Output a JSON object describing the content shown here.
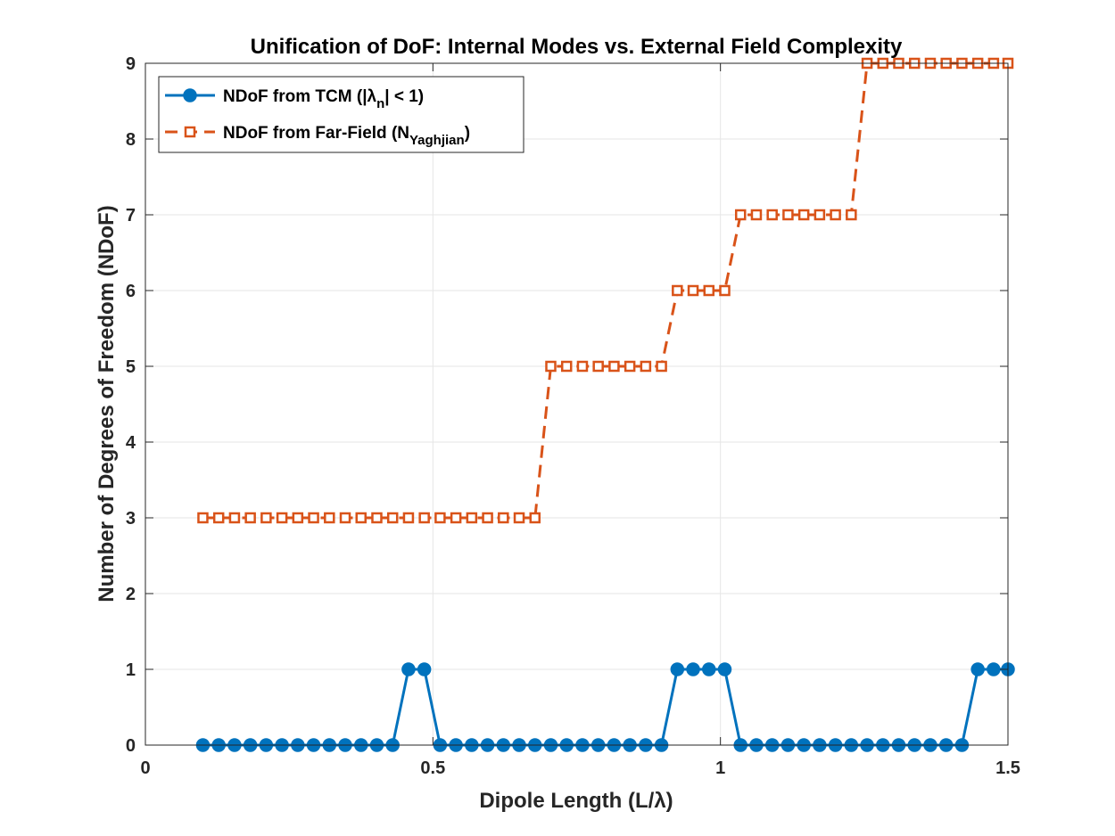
{
  "chart_data": {
    "type": "line",
    "title": "Unification of DoF: Internal Modes vs. External Field Complexity",
    "xlabel": "Dipole Length (L/λ)",
    "ylabel": "Number of Degrees of Freedom (NDoF)",
    "xlim": [
      0,
      1.5
    ],
    "ylim": [
      0,
      9
    ],
    "xticks": [
      0,
      0.5,
      1,
      1.5
    ],
    "xtick_labels": [
      "0",
      "0.5",
      "1",
      "1.5"
    ],
    "yticks": [
      0,
      1,
      2,
      3,
      4,
      5,
      6,
      7,
      8,
      9
    ],
    "ytick_labels": [
      "0",
      "1",
      "2",
      "3",
      "4",
      "5",
      "6",
      "7",
      "8",
      "9"
    ],
    "grid": true,
    "legend_position": "top-left",
    "x": [
      0.1,
      0.1275,
      0.155,
      0.1825,
      0.21,
      0.2375,
      0.265,
      0.2925,
      0.32,
      0.3475,
      0.375,
      0.4025,
      0.43,
      0.4575,
      0.485,
      0.5125,
      0.54,
      0.5675,
      0.595,
      0.6225,
      0.65,
      0.6775,
      0.705,
      0.7325,
      0.76,
      0.7875,
      0.815,
      0.8425,
      0.87,
      0.8975,
      0.925,
      0.9525,
      0.98,
      1.0075,
      1.035,
      1.0625,
      1.09,
      1.1175,
      1.145,
      1.1725,
      1.2,
      1.2275,
      1.255,
      1.2825,
      1.31,
      1.3375,
      1.365,
      1.3925,
      1.42,
      1.4475,
      1.475,
      1.5
    ],
    "series": [
      {
        "name_main": "NDoF from TCM (|λ",
        "name_sub": "n",
        "name_tail": "| < 1)",
        "color": "#0072BD",
        "line_style": "solid",
        "marker": "filled-circle",
        "values": [
          0,
          0,
          0,
          0,
          0,
          0,
          0,
          0,
          0,
          0,
          0,
          0,
          0,
          1,
          1,
          0,
          0,
          0,
          0,
          0,
          0,
          0,
          0,
          0,
          0,
          0,
          0,
          0,
          0,
          0,
          1,
          1,
          1,
          1,
          0,
          0,
          0,
          0,
          0,
          0,
          0,
          0,
          0,
          0,
          0,
          0,
          0,
          0,
          0,
          1,
          1,
          1
        ]
      },
      {
        "name_main": "NDoF from Far-Field (N",
        "name_sub": "Yaghjian",
        "name_tail": ")",
        "color": "#D95319",
        "line_style": "dashed",
        "marker": "open-square",
        "values": [
          3,
          3,
          3,
          3,
          3,
          3,
          3,
          3,
          3,
          3,
          3,
          3,
          3,
          3,
          3,
          3,
          3,
          3,
          3,
          3,
          3,
          3,
          5,
          5,
          5,
          5,
          5,
          5,
          5,
          5,
          6,
          6,
          6,
          6,
          7,
          7,
          7,
          7,
          7,
          7,
          7,
          7,
          9,
          9,
          9,
          9,
          9,
          9,
          9,
          9,
          9,
          9
        ]
      }
    ]
  }
}
